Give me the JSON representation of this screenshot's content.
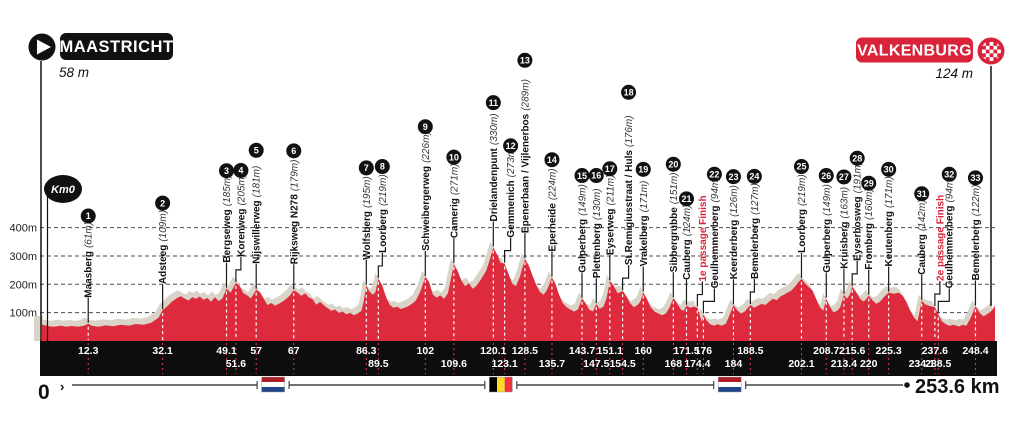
{
  "header": {
    "start": {
      "name": "MAASTRICHT",
      "elevation": "58 m"
    },
    "finish": {
      "name": "VALKENBURG",
      "elevation": "124 m"
    },
    "km0_label": "Km0"
  },
  "axis": {
    "y_ticks": [
      {
        "label": "400m",
        "value": 400
      },
      {
        "label": "300m",
        "value": 300
      },
      {
        "label": "200m",
        "value": 200
      },
      {
        "label": "100m",
        "value": 100
      }
    ],
    "x_start_label": "0",
    "x_start_arrow": "›",
    "x_end_label": "253.6 km",
    "total_km": 253.6
  },
  "colors": {
    "profile_red": "#dd2a3c",
    "shadow_grey": "#d9d4c7",
    "bar_black": "#0d0d0d",
    "label_black": "#111111",
    "finish_red": "#d8233a",
    "grid_grey": "#4d4d4d",
    "nl_flag": [
      "#ae1c28",
      "#ffffff",
      "#21468b"
    ],
    "be_flag": [
      "#000000",
      "#fdda24",
      "#ef3340"
    ]
  },
  "chart_data": {
    "type": "area",
    "x_unit": "km",
    "y_unit": "m",
    "xlim": [
      0,
      253.6
    ],
    "ylim": [
      0,
      430
    ],
    "grid": "horizontal-dashed-100m",
    "legend": "none",
    "profile": [
      [
        0,
        58
      ],
      [
        1.5,
        53
      ],
      [
        3,
        50
      ],
      [
        5,
        54
      ],
      [
        6.5,
        50
      ],
      [
        8,
        53
      ],
      [
        9.5,
        50
      ],
      [
        11,
        53
      ],
      [
        12.3,
        61
      ],
      [
        13.2,
        54
      ],
      [
        15,
        50
      ],
      [
        17,
        55
      ],
      [
        19,
        52
      ],
      [
        21,
        57
      ],
      [
        23,
        54
      ],
      [
        25,
        60
      ],
      [
        27,
        57
      ],
      [
        29,
        64
      ],
      [
        31,
        82
      ],
      [
        32.1,
        109
      ],
      [
        33,
        118
      ],
      [
        34.5,
        138
      ],
      [
        36,
        152
      ],
      [
        37,
        158
      ],
      [
        38,
        149
      ],
      [
        39,
        143
      ],
      [
        40,
        155
      ],
      [
        41,
        149
      ],
      [
        42,
        157
      ],
      [
        43,
        145
      ],
      [
        44,
        152
      ],
      [
        45,
        139
      ],
      [
        46,
        154
      ],
      [
        47,
        141
      ],
      [
        48,
        150
      ],
      [
        49.1,
        185
      ],
      [
        50.2,
        170
      ],
      [
        51.6,
        205
      ],
      [
        52.6,
        194
      ],
      [
        53.6,
        168
      ],
      [
        54.6,
        161
      ],
      [
        55.6,
        150
      ],
      [
        57,
        181
      ],
      [
        58,
        171
      ],
      [
        59,
        149
      ],
      [
        60,
        127
      ],
      [
        61,
        134
      ],
      [
        62,
        124
      ],
      [
        63,
        131
      ],
      [
        64,
        139
      ],
      [
        65,
        149
      ],
      [
        66,
        161
      ],
      [
        67,
        179
      ],
      [
        68,
        171
      ],
      [
        69,
        159
      ],
      [
        70,
        168
      ],
      [
        71,
        154
      ],
      [
        72,
        147
      ],
      [
        73,
        128
      ],
      [
        74,
        138
      ],
      [
        75,
        126
      ],
      [
        76,
        116
      ],
      [
        77,
        106
      ],
      [
        78,
        111
      ],
      [
        79,
        99
      ],
      [
        80,
        104
      ],
      [
        81,
        94
      ],
      [
        82,
        99
      ],
      [
        83,
        91
      ],
      [
        84,
        97
      ],
      [
        85,
        106
      ],
      [
        85.6,
        140
      ],
      [
        86.3,
        195
      ],
      [
        87,
        177
      ],
      [
        88,
        163
      ],
      [
        88.7,
        171
      ],
      [
        89.5,
        219
      ],
      [
        90.5,
        198
      ],
      [
        91.5,
        158
      ],
      [
        92.5,
        128
      ],
      [
        93.5,
        117
      ],
      [
        94.5,
        121
      ],
      [
        95.5,
        113
      ],
      [
        96.5,
        117
      ],
      [
        97.5,
        123
      ],
      [
        98.5,
        132
      ],
      [
        99.5,
        143
      ],
      [
        100.7,
        175
      ],
      [
        102,
        226
      ],
      [
        103,
        208
      ],
      [
        104,
        164
      ],
      [
        105,
        153
      ],
      [
        106,
        161
      ],
      [
        107,
        149
      ],
      [
        108,
        168
      ],
      [
        109.6,
        271
      ],
      [
        110.6,
        248
      ],
      [
        111.6,
        213
      ],
      [
        112.6,
        193
      ],
      [
        113.6,
        204
      ],
      [
        114.6,
        184
      ],
      [
        115.6,
        194
      ],
      [
        117,
        222
      ],
      [
        118.2,
        248
      ],
      [
        119.2,
        288
      ],
      [
        120.1,
        330
      ],
      [
        121,
        308
      ],
      [
        122,
        276
      ],
      [
        123.1,
        273
      ],
      [
        124.1,
        238
      ],
      [
        125.1,
        203
      ],
      [
        126.1,
        193
      ],
      [
        127.2,
        228
      ],
      [
        128.5,
        289
      ],
      [
        129.5,
        268
      ],
      [
        130.5,
        232
      ],
      [
        131.5,
        198
      ],
      [
        132.5,
        173
      ],
      [
        133.5,
        163
      ],
      [
        134.5,
        183
      ],
      [
        135.7,
        224
      ],
      [
        136.6,
        203
      ],
      [
        137.6,
        163
      ],
      [
        138.6,
        133
      ],
      [
        139.6,
        119
      ],
      [
        140.6,
        111
      ],
      [
        141.6,
        104
      ],
      [
        142.6,
        111
      ],
      [
        143.7,
        149
      ],
      [
        144.6,
        134
      ],
      [
        145.6,
        111
      ],
      [
        146.6,
        104
      ],
      [
        147.5,
        130
      ],
      [
        148.4,
        114
      ],
      [
        149.4,
        121
      ],
      [
        150.2,
        148
      ],
      [
        151.1,
        211
      ],
      [
        152,
        198
      ],
      [
        153.2,
        168
      ],
      [
        154.5,
        176
      ],
      [
        155.5,
        158
      ],
      [
        156.5,
        133
      ],
      [
        157.5,
        119
      ],
      [
        158.5,
        127
      ],
      [
        159.2,
        139
      ],
      [
        160,
        171
      ],
      [
        161,
        148
      ],
      [
        162,
        118
      ],
      [
        163,
        104
      ],
      [
        164,
        97
      ],
      [
        165,
        91
      ],
      [
        166,
        97
      ],
      [
        167,
        118
      ],
      [
        168,
        151
      ],
      [
        169,
        133
      ],
      [
        170,
        111
      ],
      [
        170.8,
        107
      ],
      [
        171.5,
        124
      ],
      [
        172.5,
        117
      ],
      [
        173.4,
        121
      ],
      [
        174.4,
        118
      ],
      [
        175.1,
        88
      ],
      [
        175.6,
        68
      ],
      [
        176,
        94
      ],
      [
        176.8,
        73
      ],
      [
        177.8,
        59
      ],
      [
        178.8,
        54
      ],
      [
        179.8,
        59
      ],
      [
        180.8,
        54
      ],
      [
        182,
        61
      ],
      [
        183,
        93
      ],
      [
        184,
        126
      ],
      [
        185,
        109
      ],
      [
        186,
        97
      ],
      [
        187,
        104
      ],
      [
        188.5,
        127
      ],
      [
        189.5,
        117
      ],
      [
        190.5,
        124
      ],
      [
        191.5,
        131
      ],
      [
        192.5,
        127
      ],
      [
        193.5,
        139
      ],
      [
        194.5,
        149
      ],
      [
        195.5,
        144
      ],
      [
        196.5,
        157
      ],
      [
        197.5,
        164
      ],
      [
        198.5,
        171
      ],
      [
        199.5,
        179
      ],
      [
        200.5,
        194
      ],
      [
        201.3,
        208
      ],
      [
        202.1,
        219
      ],
      [
        203,
        204
      ],
      [
        204,
        191
      ],
      [
        205,
        179
      ],
      [
        206,
        149
      ],
      [
        207,
        119
      ],
      [
        207.9,
        107
      ],
      [
        208.7,
        149
      ],
      [
        209.6,
        123
      ],
      [
        210.6,
        101
      ],
      [
        211.6,
        107
      ],
      [
        212.4,
        119
      ],
      [
        213.4,
        163
      ],
      [
        214.2,
        149
      ],
      [
        215,
        164
      ],
      [
        215.6,
        191
      ],
      [
        216.6,
        173
      ],
      [
        217.6,
        151
      ],
      [
        218.6,
        139
      ],
      [
        219.3,
        147
      ],
      [
        220,
        160
      ],
      [
        221,
        144
      ],
      [
        222,
        131
      ],
      [
        223,
        139
      ],
      [
        224,
        154
      ],
      [
        225.3,
        171
      ],
      [
        226.6,
        167
      ],
      [
        228,
        170
      ],
      [
        229,
        159
      ],
      [
        230,
        139
      ],
      [
        231,
        108
      ],
      [
        232,
        84
      ],
      [
        233,
        69
      ],
      [
        234.1,
        142
      ],
      [
        235,
        129
      ],
      [
        236,
        124
      ],
      [
        237,
        121
      ],
      [
        237.6,
        120
      ],
      [
        238.5,
        94
      ],
      [
        239.5,
        69
      ],
      [
        240.5,
        59
      ],
      [
        241.5,
        54
      ],
      [
        242.5,
        57
      ],
      [
        244,
        51
      ],
      [
        245,
        57
      ],
      [
        246,
        54
      ],
      [
        247,
        78
      ],
      [
        248.4,
        122
      ],
      [
        249.5,
        99
      ],
      [
        250.5,
        87
      ],
      [
        251.5,
        94
      ],
      [
        252.5,
        104
      ],
      [
        253.6,
        124
      ]
    ],
    "climbs": [
      {
        "n": "1",
        "name": "Maasberg",
        "elev_label": "(61m)",
        "km": 12.3,
        "km_label": "12.3",
        "row": "top",
        "dx": 0
      },
      {
        "n": "2",
        "name": "Adsteeg",
        "elev_label": "(109m)",
        "km": 32.1,
        "km_label": "32.1",
        "row": "top",
        "dx": 0
      },
      {
        "n": "3",
        "name": "Bergseweg",
        "elev_label": "(185m)",
        "km": 49.1,
        "km_label": "49.1",
        "row": "top",
        "dx": 0
      },
      {
        "n": "4",
        "name": "Korenweg",
        "elev_label": "(205m)",
        "km": 51.6,
        "km_label": "51.6",
        "row": "bottom",
        "dx": 5
      },
      {
        "n": "5",
        "name": "Nijswillerweg",
        "elev_label": "(181m)",
        "km": 57,
        "km_label": "57",
        "row": "top",
        "dx": 0
      },
      {
        "n": "6",
        "name": "Rijksweg N278",
        "elev_label": "(179m)",
        "km": 67,
        "km_label": "67",
        "row": "top",
        "dx": 0
      },
      {
        "n": "7",
        "name": "Wolfsberg",
        "elev_label": "(195m)",
        "km": 86.3,
        "km_label": "86.3",
        "row": "top",
        "dx": 0
      },
      {
        "n": "8",
        "name": "Loorberg",
        "elev_label": "(219m)",
        "km": 89.5,
        "km_label": "89.5",
        "row": "bottom",
        "dx": 4
      },
      {
        "n": "9",
        "name": "Schweibergerweg",
        "elev_label": "(226m)",
        "km": 102,
        "km_label": "102",
        "row": "top",
        "dx": 0
      },
      {
        "n": "10",
        "name": "Camerig",
        "elev_label": "(271m)",
        "km": 109.6,
        "km_label": "109.6",
        "row": "bottom",
        "dx": 0
      },
      {
        "n": "11",
        "name": "Drielandenpunt",
        "elev_label": "(330m)",
        "km": 120.1,
        "km_label": "120.1",
        "row": "top",
        "dx": 0
      },
      {
        "n": "12",
        "name": "Gemmenich",
        "elev_label": "(273m)",
        "km": 123.1,
        "km_label": "123.1",
        "row": "bottom",
        "dx": 6
      },
      {
        "n": "13",
        "name": "Epenerbaan / Vijlenerbos",
        "elev_label": "(289m)",
        "km": 128.5,
        "km_label": "128.5",
        "row": "top",
        "dx": 0
      },
      {
        "n": "14",
        "name": "Eperheide",
        "elev_label": "(224m)",
        "km": 135.7,
        "km_label": "135.7",
        "row": "bottom",
        "dx": 0
      },
      {
        "n": "15",
        "name": "Gulperberg",
        "elev_label": "(149m)",
        "km": 143.7,
        "km_label": "143.7",
        "row": "top",
        "dx": 0
      },
      {
        "n": "16",
        "name": "Plettenberg",
        "elev_label": "(130m)",
        "km": 147.5,
        "km_label": "147.5",
        "row": "bottom",
        "dx": 0
      },
      {
        "n": "17",
        "name": "Eyserweg",
        "elev_label": "(211m)",
        "km": 151.1,
        "km_label": "151.1",
        "row": "top",
        "dx": 0
      },
      {
        "n": "18",
        "name": "St.Remigiusstraat / Huls",
        "elev_label": "(176m)",
        "km": 154.5,
        "km_label": "154.5",
        "row": "bottom",
        "dx": 6
      },
      {
        "n": "19",
        "name": "Vrakelberg",
        "elev_label": "(171m)",
        "km": 160,
        "km_label": "160",
        "row": "top",
        "dx": 0
      },
      {
        "n": "20",
        "name": "Sibbergrubbe",
        "elev_label": "(151m)",
        "km": 168,
        "km_label": "168",
        "row": "bottom",
        "dx": 0
      },
      {
        "n": "21",
        "name": "Cauberg",
        "elev_label": "(124m)",
        "km": 171.5,
        "km_label": "171.5",
        "row": "top",
        "dx": 0
      },
      {
        "type": "finish",
        "name": "1e passage Finish",
        "km": 174.4,
        "km_label": "174.4",
        "row": "bottom",
        "dx": 5
      },
      {
        "n": "22",
        "name": "Geulhemmerberg",
        "elev_label": "(94m)",
        "km": 176,
        "km_label": "176",
        "row": "top",
        "dx": 11
      },
      {
        "n": "23",
        "name": "Keerderberg",
        "elev_label": "(126m)",
        "km": 184,
        "km_label": "184",
        "row": "bottom",
        "dx": 0
      },
      {
        "n": "24",
        "name": "Bemelerberg",
        "elev_label": "(127m)",
        "km": 188.5,
        "km_label": "188.5",
        "row": "top",
        "dx": 4
      },
      {
        "n": "25",
        "name": "Loorberg",
        "elev_label": "(219m)",
        "km": 202.1,
        "km_label": "202.1",
        "row": "bottom",
        "dx": 0
      },
      {
        "n": "26",
        "name": "Gulperberg",
        "elev_label": "(149m)",
        "km": 208.7,
        "km_label": "208.7",
        "row": "top",
        "dx": 0
      },
      {
        "n": "27",
        "name": "Kruisberg",
        "elev_label": "(163m)",
        "km": 213.4,
        "km_label": "213.4",
        "row": "bottom",
        "dx": 0
      },
      {
        "n": "28",
        "name": "Eyserbosweg",
        "elev_label": "(191m)",
        "km": 215.6,
        "km_label": "215.6",
        "row": "top",
        "dx": 5
      },
      {
        "n": "29",
        "name": "Fromberg",
        "elev_label": "(160m)",
        "km": 220,
        "km_label": "220",
        "row": "bottom",
        "dx": 0
      },
      {
        "n": "30",
        "name": "Keutenberg",
        "elev_label": "(171m)",
        "km": 225.3,
        "km_label": "225.3",
        "row": "top",
        "dx": 0
      },
      {
        "n": "31",
        "name": "Cauberg",
        "elev_label": "(142m)",
        "km": 234.1,
        "km_label": "234.1",
        "row": "bottom",
        "dx": 0
      },
      {
        "type": "finish",
        "name": "2e passage Finish",
        "km": 237.6,
        "km_label": "237.6",
        "row": "top",
        "dx": 5
      },
      {
        "n": "32",
        "name": "Geulhemmerberg",
        "elev_label": "(94m)",
        "km": 238.5,
        "km_label": "238.5",
        "row": "bottom",
        "dx": 11
      },
      {
        "n": "33",
        "name": "Bemelerberg",
        "elev_label": "(122m)",
        "km": 248.4,
        "km_label": "248.4",
        "row": "top",
        "dx": 0
      }
    ],
    "route_flags": [
      {
        "country": "nl",
        "km": 61.5
      },
      {
        "country": "be",
        "km": 122.1
      },
      {
        "country": "nl",
        "km": 183
      }
    ]
  }
}
